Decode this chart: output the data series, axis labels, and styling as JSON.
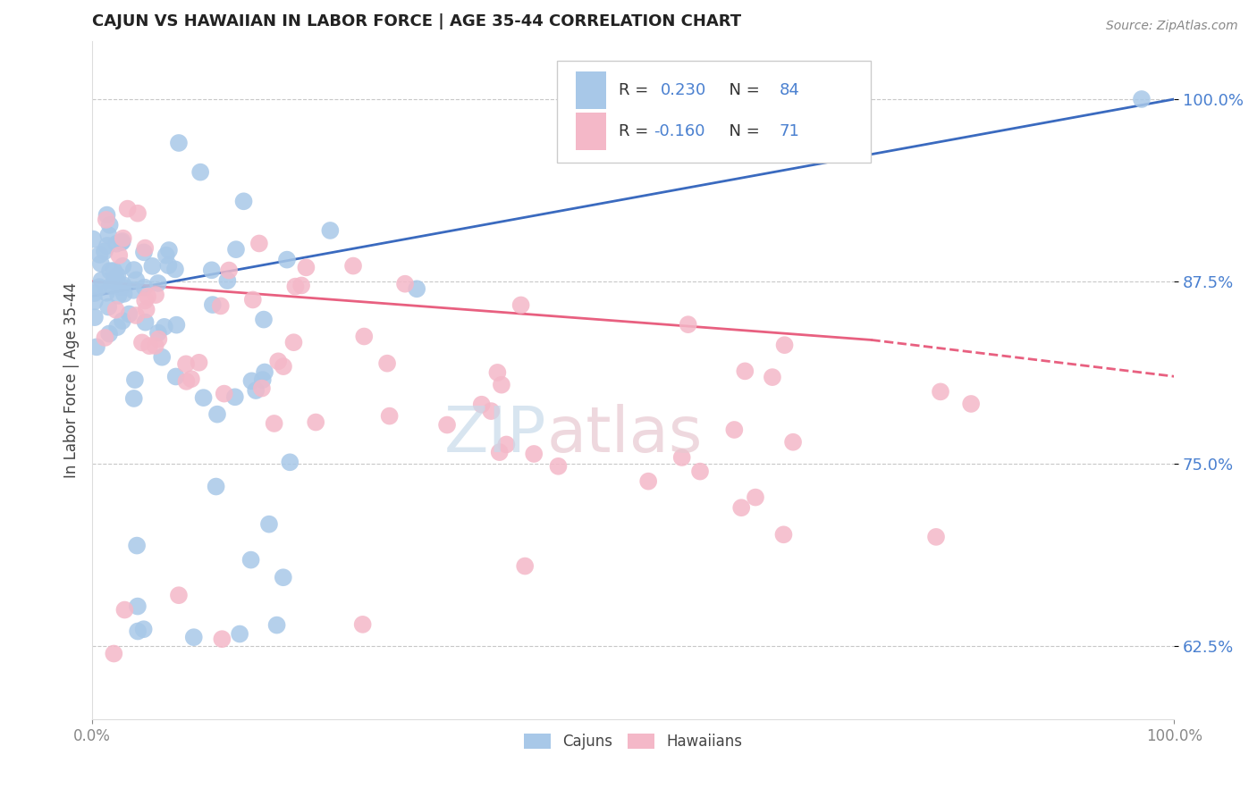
{
  "title": "CAJUN VS HAWAIIAN IN LABOR FORCE | AGE 35-44 CORRELATION CHART",
  "source_text": "Source: ZipAtlas.com",
  "ylabel": "In Labor Force | Age 35-44",
  "xlim": [
    0.0,
    1.0
  ],
  "ylim": [
    0.575,
    1.04
  ],
  "ytick_labels": [
    "62.5%",
    "75.0%",
    "87.5%",
    "100.0%"
  ],
  "ytick_values": [
    0.625,
    0.75,
    0.875,
    1.0
  ],
  "xtick_labels": [
    "0.0%",
    "100.0%"
  ],
  "xtick_values": [
    0.0,
    1.0
  ],
  "cajun_R": 0.23,
  "cajun_N": 84,
  "hawaiian_R": -0.16,
  "hawaiian_N": 71,
  "cajun_color": "#a8c8e8",
  "hawaiian_color": "#f4b8c8",
  "cajun_line_color": "#3a6abf",
  "hawaiian_line_color": "#e86080",
  "background_color": "#ffffff",
  "grid_color": "#c8c8c8",
  "legend_label_cajun": "Cajuns",
  "legend_label_hawaiian": "Hawaiians",
  "watermark_color": "#dde8f0",
  "watermark_zip_color": "#dde8f0",
  "watermark_atlas_color": "#e8d0d8"
}
